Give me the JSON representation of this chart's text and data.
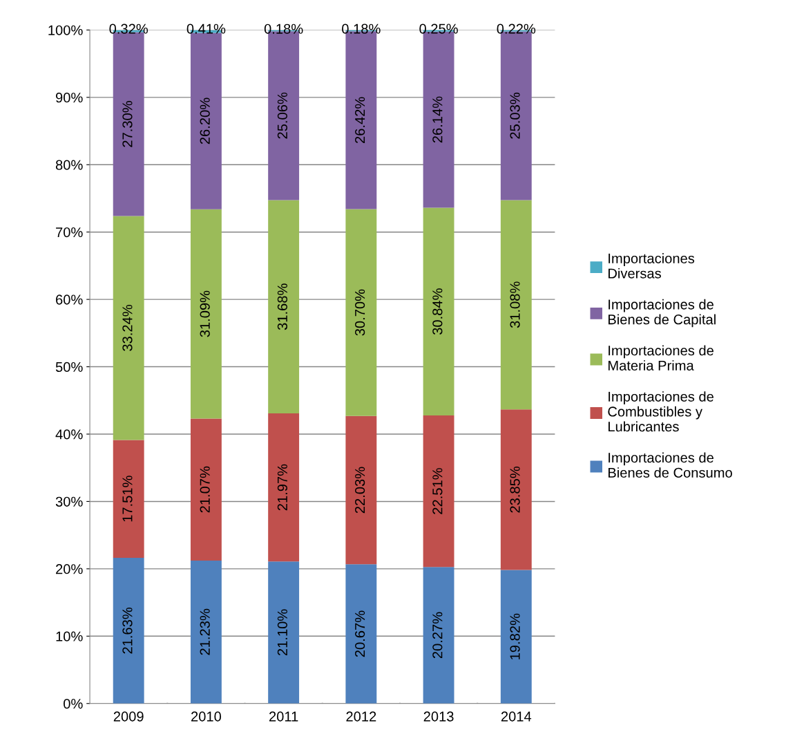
{
  "chart_data": {
    "type": "bar",
    "stacked": true,
    "categories": [
      "2009",
      "2010",
      "2011",
      "2012",
      "2013",
      "2014"
    ],
    "series": [
      {
        "name": "Importaciones de Bienes de Consumo",
        "color": "#4f81bd",
        "values": [
          21.63,
          21.23,
          21.1,
          20.67,
          20.27,
          19.82
        ],
        "value_labels": [
          "21.63%",
          "21.23%",
          "21.10%",
          "20.67%",
          "20.27%",
          "19.82%"
        ]
      },
      {
        "name": "Importaciones de Combustibles y Lubricantes",
        "color": "#c0504d",
        "values": [
          17.51,
          21.07,
          21.97,
          22.03,
          22.51,
          23.85
        ],
        "value_labels": [
          "17.51%",
          "21.07%",
          "21.97%",
          "22.03%",
          "22.51%",
          "23.85%"
        ]
      },
      {
        "name": "Importaciones de Materia Prima",
        "color": "#9bbb59",
        "values": [
          33.24,
          31.09,
          31.68,
          30.7,
          30.84,
          31.08
        ],
        "value_labels": [
          "33.24%",
          "31.09%",
          "31.68%",
          "30.70%",
          "30.84%",
          "31.08%"
        ]
      },
      {
        "name": "Importaciones de Bienes de Capital",
        "color": "#8064a2",
        "values": [
          27.3,
          26.2,
          25.06,
          26.42,
          26.14,
          25.03
        ],
        "value_labels": [
          "27.30%",
          "26.20%",
          "25.06%",
          "26.42%",
          "26.14%",
          "25.03%"
        ]
      },
      {
        "name": "Importaciones Diversas",
        "color": "#4bacc6",
        "values": [
          0.32,
          0.41,
          0.18,
          0.18,
          0.25,
          0.22
        ],
        "value_labels": [
          "0.32%",
          "0.41%",
          "0.18%",
          "0.18%",
          "0.25%",
          "0.22%"
        ]
      }
    ],
    "ylim": [
      0,
      100
    ],
    "yticks": [
      {
        "value": 0,
        "label": "0%"
      },
      {
        "value": 10,
        "label": "10%"
      },
      {
        "value": 20,
        "label": "20%"
      },
      {
        "value": 30,
        "label": "30%"
      },
      {
        "value": 40,
        "label": "40%"
      },
      {
        "value": 50,
        "label": "50%"
      },
      {
        "value": 60,
        "label": "60%"
      },
      {
        "value": 70,
        "label": "70%"
      },
      {
        "value": 80,
        "label": "80%"
      },
      {
        "value": 90,
        "label": "90%"
      },
      {
        "value": 100,
        "label": "100%"
      }
    ],
    "grid": "y",
    "legend": "right"
  }
}
